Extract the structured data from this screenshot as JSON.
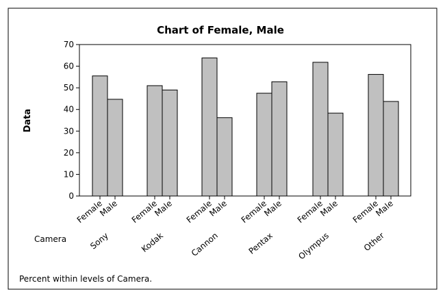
{
  "chart_data": {
    "type": "bar",
    "title": "Chart of Female, Male",
    "ylabel": "Data",
    "xlabel": "Camera",
    "ylim": [
      0,
      70
    ],
    "yticks": [
      0,
      10,
      20,
      30,
      40,
      50,
      60,
      70
    ],
    "grid": false,
    "categories": [
      "Sony",
      "Kodak",
      "Cannon",
      "Pentax",
      "Olympus",
      "Other"
    ],
    "series": [
      {
        "name": "Female",
        "values": [
          55.5,
          51.0,
          63.8,
          47.5,
          61.8,
          56.2
        ]
      },
      {
        "name": "Male",
        "values": [
          44.7,
          49.0,
          36.2,
          52.8,
          38.3,
          43.7
        ]
      }
    ],
    "footnote": "Percent within levels of Camera.",
    "colors": {
      "bar_fill": "#c0c0c0",
      "bar_stroke": "#000000",
      "frame": "#000000",
      "background": "#ffffff"
    }
  }
}
